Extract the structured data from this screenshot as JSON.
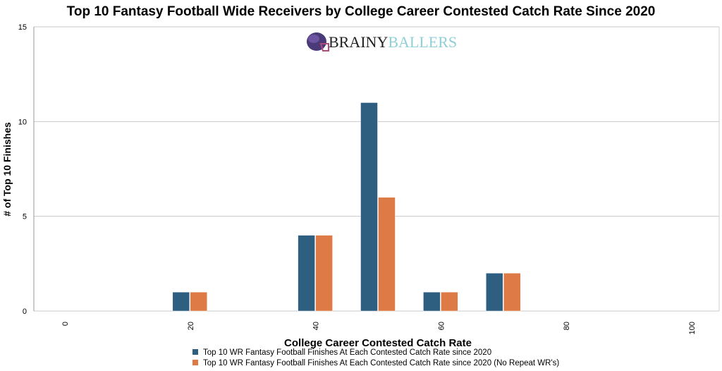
{
  "chart_data": {
    "type": "bar",
    "title": "Top 10 Fantasy Football Wide Receivers by College Career Contested Catch Rate Since 2020",
    "xlabel": "College Career Contested Catch Rate",
    "ylabel": "# of Top 10 Finishes",
    "xlim": [
      0,
      100
    ],
    "ylim": [
      0,
      15
    ],
    "xticks": [
      0,
      20,
      40,
      60,
      80,
      100
    ],
    "yticks": [
      0,
      5,
      10,
      15
    ],
    "grid": "horizontal",
    "legend_position": "bottom",
    "x": [
      20,
      40,
      50,
      60,
      70
    ],
    "series": [
      {
        "name": "Top 10 WR Fantasy Football Finishes At Each Contested Catch Rate since 2020",
        "color": "#2e5f80",
        "values": [
          1,
          4,
          11,
          1,
          2
        ]
      },
      {
        "name": "Top 10 WR Fantasy Football Finishes At Each Contested Catch Rate since 2020 (No Repeat WR's)",
        "color": "#dd7a45",
        "values": [
          1,
          4,
          6,
          1,
          2
        ]
      }
    ]
  },
  "logo": {
    "part1": "BRAINY",
    "part2": "BALLERS"
  }
}
